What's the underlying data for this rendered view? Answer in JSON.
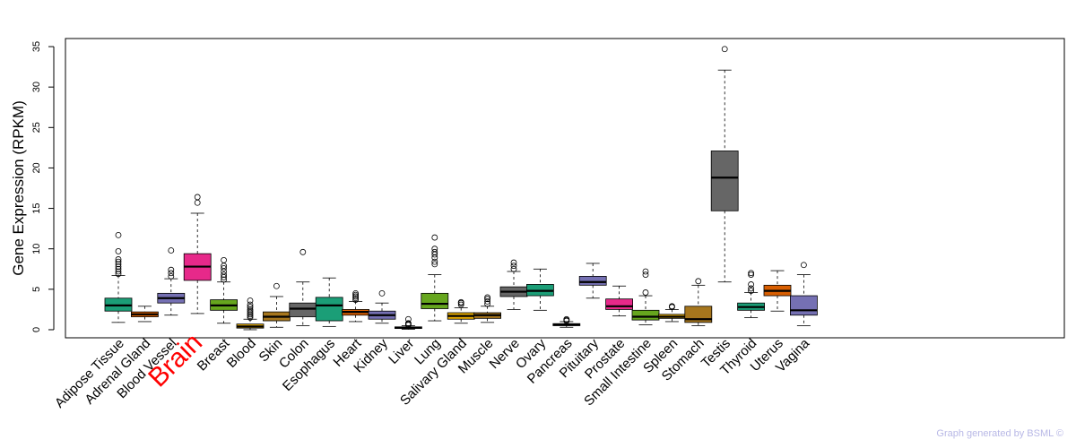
{
  "credit": "Graph generated by BSML ©",
  "chart_data": {
    "type": "boxplot",
    "ylabel": "Gene Expression (RPKM)",
    "ylim": [
      -1,
      36
    ],
    "yticks": [
      0,
      5,
      10,
      15,
      20,
      25,
      30,
      35
    ],
    "highlight_category": "Brain",
    "highlight_color": "#ff0000",
    "categories": [
      {
        "name": "Adipose Tissue",
        "color": "#1b9e77",
        "min": 0.9,
        "q1": 2.3,
        "median": 3.0,
        "q3": 3.9,
        "max": 6.7,
        "outliers": [
          6.9,
          7.2,
          7.5,
          7.8,
          8.1,
          8.4,
          8.7,
          9.7,
          11.7
        ]
      },
      {
        "name": "Adrenal Gland",
        "color": "#d95f02",
        "min": 1.0,
        "q1": 1.6,
        "median": 1.9,
        "q3": 2.2,
        "max": 2.9,
        "outliers": []
      },
      {
        "name": "Blood Vessel",
        "color": "#7570b3",
        "min": 1.8,
        "q1": 3.3,
        "median": 3.9,
        "q3": 4.5,
        "max": 6.3,
        "outliers": [
          6.6,
          7.0,
          7.4,
          9.8
        ]
      },
      {
        "name": "Brain",
        "color": "#e7298a",
        "min": 2.0,
        "q1": 6.1,
        "median": 7.8,
        "q3": 9.4,
        "max": 14.4,
        "outliers": [
          15.7,
          16.4
        ]
      },
      {
        "name": "Breast",
        "color": "#66a61e",
        "min": 0.8,
        "q1": 2.4,
        "median": 3.0,
        "q3": 3.7,
        "max": 5.9,
        "outliers": [
          6.2,
          6.5,
          6.8,
          7.2,
          7.6,
          7.9,
          8.6
        ]
      },
      {
        "name": "Blood",
        "color": "#e6ab02",
        "min": 0.0,
        "q1": 0.2,
        "median": 0.4,
        "q3": 0.7,
        "max": 1.3,
        "outliers": [
          1.5,
          1.7,
          1.9,
          2.1,
          2.3,
          2.5,
          2.8,
          3.1,
          3.6
        ]
      },
      {
        "name": "Skin",
        "color": "#a6761d",
        "min": 0.3,
        "q1": 1.1,
        "median": 1.6,
        "q3": 2.2,
        "max": 4.1,
        "outliers": [
          5.4
        ]
      },
      {
        "name": "Colon",
        "color": "#666666",
        "min": 0.5,
        "q1": 1.6,
        "median": 2.6,
        "q3": 3.3,
        "max": 5.9,
        "outliers": [
          9.6
        ]
      },
      {
        "name": "Esophagus",
        "color": "#1b9e77",
        "min": 0.4,
        "q1": 1.1,
        "median": 3.0,
        "q3": 4.0,
        "max": 6.4,
        "outliers": []
      },
      {
        "name": "Heart",
        "color": "#d95f02",
        "min": 1.0,
        "q1": 1.8,
        "median": 2.2,
        "q3": 2.5,
        "max": 3.5,
        "outliers": [
          3.7,
          3.9,
          4.1,
          4.3,
          4.5
        ]
      },
      {
        "name": "Kidney",
        "color": "#7570b3",
        "min": 0.8,
        "q1": 1.3,
        "median": 1.8,
        "q3": 2.3,
        "max": 3.3,
        "outliers": [
          4.5
        ]
      },
      {
        "name": "Liver",
        "color": "#e7298a",
        "min": 0.05,
        "q1": 0.15,
        "median": 0.25,
        "q3": 0.35,
        "max": 0.5,
        "outliers": [
          0.6,
          0.7,
          0.8,
          1.3
        ]
      },
      {
        "name": "Lung",
        "color": "#66a61e",
        "min": 1.1,
        "q1": 2.6,
        "median": 3.2,
        "q3": 4.5,
        "max": 6.8,
        "outliers": [
          8.1,
          8.4,
          8.9,
          9.3,
          9.6,
          10.0,
          11.4
        ]
      },
      {
        "name": "Salivary Gland",
        "color": "#e6ab02",
        "min": 0.8,
        "q1": 1.3,
        "median": 1.7,
        "q3": 2.1,
        "max": 2.7,
        "outliers": [
          3.1,
          3.3,
          3.4
        ]
      },
      {
        "name": "Muscle",
        "color": "#a6761d",
        "min": 0.9,
        "q1": 1.4,
        "median": 1.8,
        "q3": 2.1,
        "max": 2.9,
        "outliers": [
          3.2,
          3.5,
          3.8,
          4.0
        ]
      },
      {
        "name": "Nerve",
        "color": "#666666",
        "min": 2.5,
        "q1": 4.1,
        "median": 4.7,
        "q3": 5.3,
        "max": 7.2,
        "outliers": [
          7.5,
          7.9,
          8.3
        ]
      },
      {
        "name": "Ovary",
        "color": "#1b9e77",
        "min": 2.4,
        "q1": 4.2,
        "median": 4.8,
        "q3": 5.6,
        "max": 7.5,
        "outliers": []
      },
      {
        "name": "Pancreas",
        "color": "#d95f02",
        "min": 0.3,
        "q1": 0.5,
        "median": 0.6,
        "q3": 0.75,
        "max": 1.0,
        "outliers": [
          1.1,
          1.2,
          1.3
        ]
      },
      {
        "name": "Pituitary",
        "color": "#7570b3",
        "min": 3.9,
        "q1": 5.5,
        "median": 5.9,
        "q3": 6.6,
        "max": 8.2,
        "outliers": []
      },
      {
        "name": "Prostate",
        "color": "#e7298a",
        "min": 1.7,
        "q1": 2.5,
        "median": 2.9,
        "q3": 3.8,
        "max": 5.4,
        "outliers": []
      },
      {
        "name": "Small Intestine",
        "color": "#66a61e",
        "min": 0.6,
        "q1": 1.2,
        "median": 1.6,
        "q3": 2.4,
        "max": 4.2,
        "outliers": [
          4.6,
          6.8,
          7.2
        ]
      },
      {
        "name": "Spleen",
        "color": "#e6ab02",
        "min": 1.0,
        "q1": 1.4,
        "median": 1.6,
        "q3": 1.9,
        "max": 2.5,
        "outliers": [
          2.8,
          2.9
        ]
      },
      {
        "name": "Stomach",
        "color": "#a6761d",
        "min": 0.5,
        "q1": 0.9,
        "median": 1.3,
        "q3": 2.9,
        "max": 5.5,
        "outliers": [
          6.0
        ]
      },
      {
        "name": "Testis",
        "color": "#666666",
        "min": 5.9,
        "q1": 14.7,
        "median": 18.8,
        "q3": 22.1,
        "max": 32.1,
        "outliers": [
          34.7
        ]
      },
      {
        "name": "Thyroid",
        "color": "#1b9e77",
        "min": 1.5,
        "q1": 2.4,
        "median": 2.8,
        "q3": 3.3,
        "max": 4.6,
        "outliers": [
          4.8,
          5.1,
          5.6,
          6.8,
          7.0
        ]
      },
      {
        "name": "Uterus",
        "color": "#d95f02",
        "min": 2.3,
        "q1": 4.2,
        "median": 4.8,
        "q3": 5.5,
        "max": 7.3,
        "outliers": []
      },
      {
        "name": "Vagina",
        "color": "#7570b3",
        "min": 0.5,
        "q1": 1.8,
        "median": 2.4,
        "q3": 4.2,
        "max": 6.8,
        "outliers": [
          8.0
        ]
      }
    ]
  }
}
